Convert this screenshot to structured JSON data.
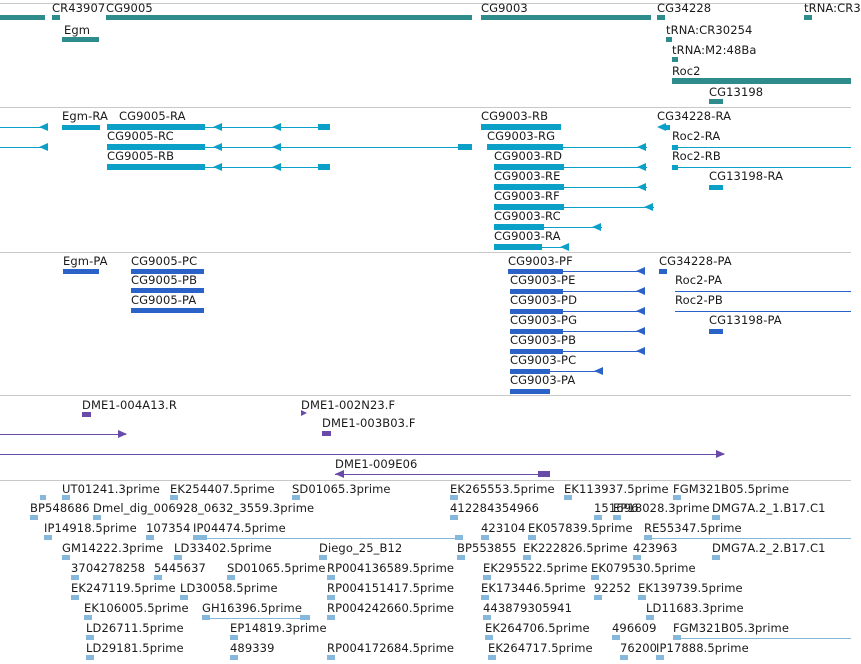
{
  "colors": {
    "gene": "#2e8c8c",
    "transcript": "#0aa0c8",
    "protein": "#2a62c8",
    "clone": "#6a4aa8",
    "est": "#86b8dc",
    "separator": "#c8c8c8"
  },
  "gene_track": {
    "labels": [
      "CR43907",
      "CG9005",
      "Egm",
      "CG9003",
      "CG34228",
      "tRNA:CR30254",
      "tRNA:M2:48Ba",
      "Roc2",
      "CG13198",
      "tRNA:CR3"
    ]
  },
  "transcript_track": {
    "labels": [
      "Egm-RA",
      "CG9005-RA",
      "CG9005-RC",
      "CG9005-RB",
      "CG9003-RB",
      "CG9003-RG",
      "CG9003-RD",
      "CG9003-RE",
      "CG9003-RF",
      "CG9003-RC",
      "CG9003-RA",
      "CG34228-RA",
      "Roc2-RA",
      "Roc2-RB",
      "CG13198-RA"
    ]
  },
  "protein_track": {
    "labels": [
      "Egm-PA",
      "CG9005-PC",
      "CG9005-PB",
      "CG9005-PA",
      "CG9003-PF",
      "CG9003-PE",
      "CG9003-PD",
      "CG9003-PG",
      "CG9003-PB",
      "CG9003-PC",
      "CG9003-PA",
      "CG34228-PA",
      "Roc2-PA",
      "Roc2-PB",
      "CG13198-PA"
    ]
  },
  "clone_track": {
    "labels": [
      "DME1-004A13.R",
      "DME1-002N23.F",
      "DME1-003B03.F",
      "DME1-009E06"
    ]
  },
  "est_track": {
    "labels": [
      "UT01241.3prime",
      "EK254407.5prime",
      "SD01065.3prime",
      "EK265553.5prime",
      "EK113937.5prime",
      "FGM321B05.5prime",
      "BP548686",
      "Dmel_dig_006928_0632_3559.3prime",
      "412284354966",
      "151696",
      "EP18028.3prime",
      "DMG7A.2_1.B17.C1",
      "IP14918.5prime",
      "107354",
      "IP04474.5prime",
      "423104",
      "EK057839.5prime",
      "RE55347.5prime",
      "GM14222.3prime",
      "LD33402.5prime",
      "Diego_25_B12",
      "BP553855",
      "EK222826.5prime",
      "423963",
      "DMG7A.2_2.B17.C1",
      "3704278258",
      "5445637",
      "SD01065.5prime",
      "RP004136589.5prime",
      "EK295522.5prime",
      "EK079530.5prime",
      "EK247119.5prime",
      "LD30058.5prime",
      "RP004151417.5prime",
      "EK173446.5prime",
      "92252",
      "EK139739.5prime",
      "EK106005.5prime",
      "GH16396.5prime",
      "RP004242660.5prime",
      "443879305941",
      "LD11683.3prime",
      "LD26711.5prime",
      "EP14819.3prime",
      "EK264706.5prime",
      "496609",
      "FGM321B05.3prime",
      "LD29181.5prime",
      "489339",
      "RP004172684.5prime",
      "EK264717.5prime",
      "76200",
      "IP17888.5prime"
    ]
  }
}
